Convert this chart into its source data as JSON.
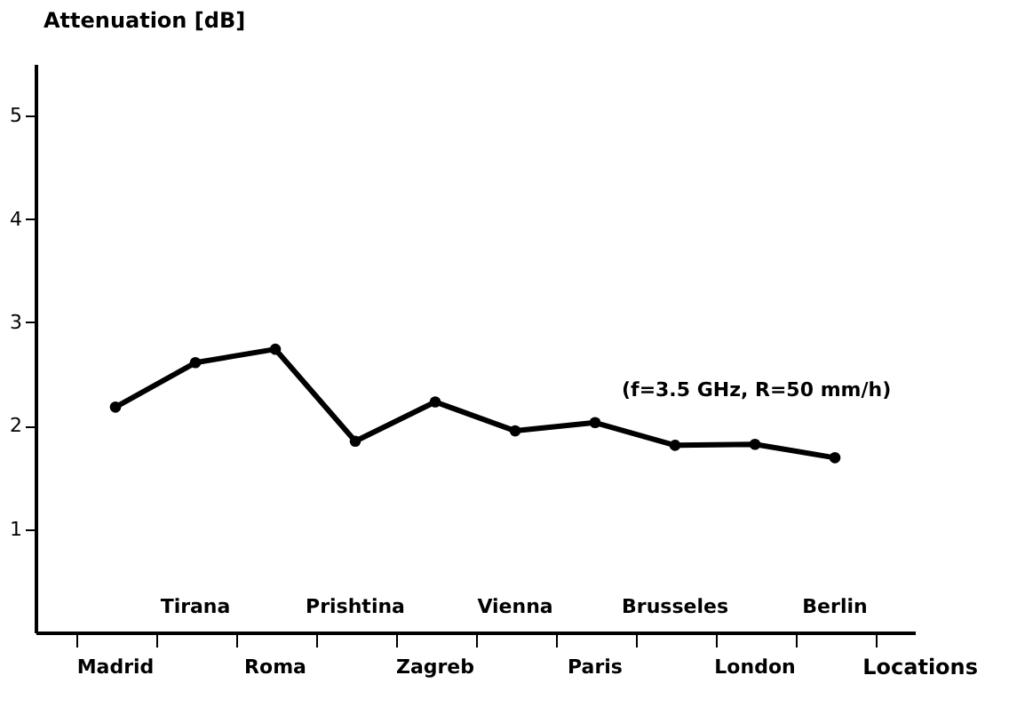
{
  "chart_data": {
    "type": "line",
    "ylabel": "Attenuation [dB]",
    "xlabel": "Locations",
    "categories": [
      "Madrid",
      "Tirana",
      "Roma",
      "Prishtina",
      "Zagreb",
      "Vienna",
      "Paris",
      "Brusseles",
      "London",
      "Berlin"
    ],
    "series": [
      {
        "color": "#000000",
        "values": [
          2.18,
          2.61,
          2.74,
          1.85,
          2.23,
          1.95,
          2.03,
          1.81,
          1.82,
          1.69
        ]
      }
    ],
    "ylim": [
      0,
      5.5
    ],
    "yticks": [
      1,
      2,
      3,
      4,
      5
    ],
    "marker": "circle",
    "line_style": "solid",
    "grid": false,
    "annotations": [
      {
        "text": "(f=3.5 GHz, R=50 mm/h)",
        "x": "Paris",
        "y": 2.03
      }
    ]
  }
}
